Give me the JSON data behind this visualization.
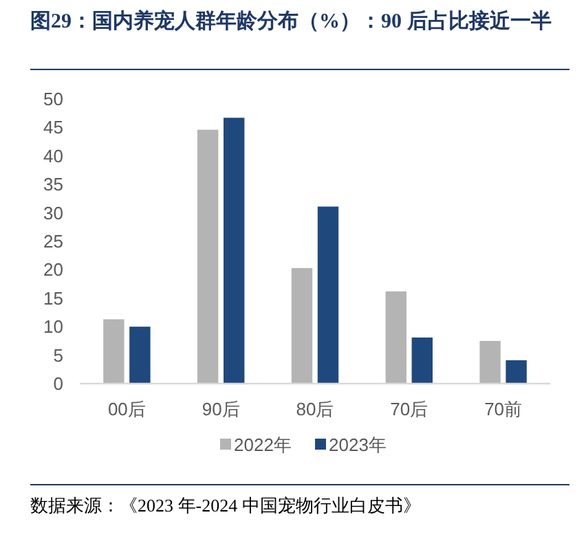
{
  "chart_data": {
    "type": "bar",
    "title": "图29：国内养宠人群年龄分布（%）：90 后占比接近一半",
    "categories": [
      "00后",
      "90后",
      "80后",
      "70后",
      "70前"
    ],
    "series": [
      {
        "name": "2022年",
        "color": "#b4b4b4",
        "values": [
          11.4,
          44.7,
          20.4,
          16.3,
          7.6
        ]
      },
      {
        "name": "2023年",
        "color": "#1f497d",
        "values": [
          10.1,
          46.8,
          31.2,
          8.2,
          4.2
        ]
      }
    ],
    "ylim": [
      0,
      50
    ],
    "yticks": [
      0,
      5,
      10,
      15,
      20,
      25,
      30,
      35,
      40,
      45,
      50
    ],
    "grid": false,
    "legend": "bottom",
    "annotations": [
      "数据来源：《2023 年-2024 中国宠物行业白皮书》"
    ]
  }
}
